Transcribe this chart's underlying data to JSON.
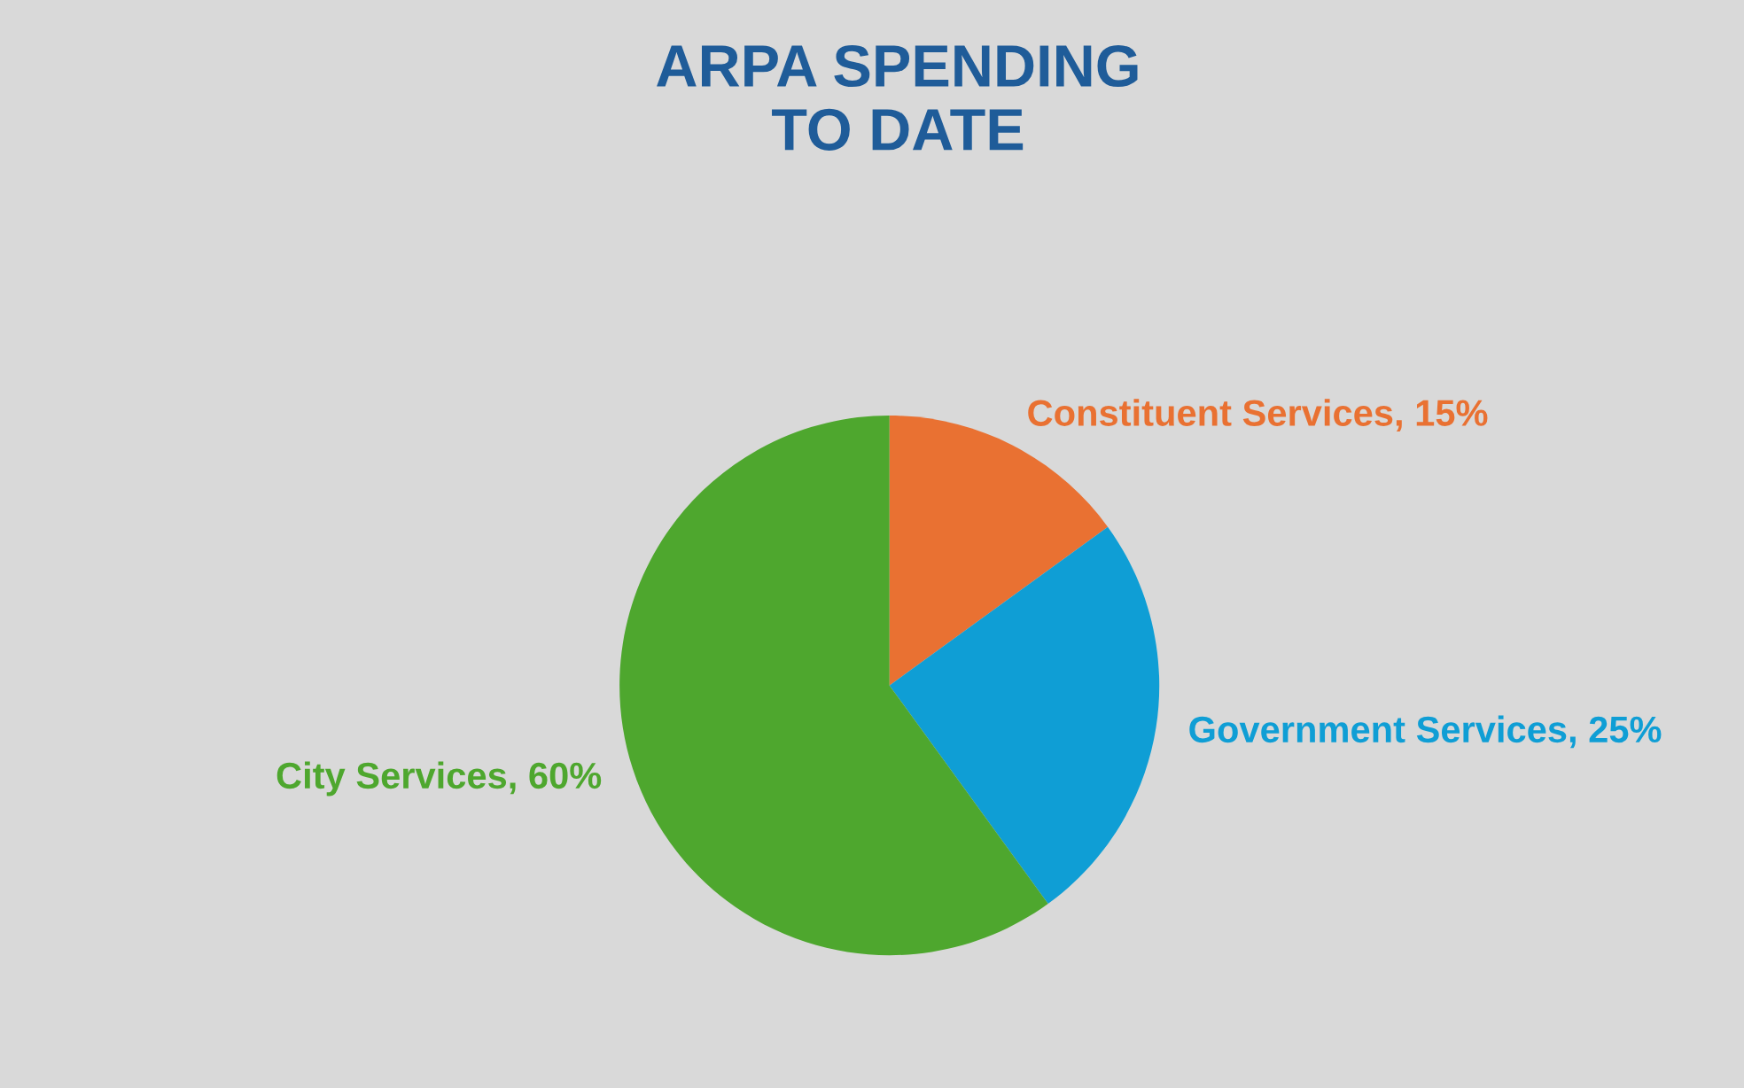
{
  "chart_data": {
    "type": "pie",
    "title": "ARPA SPENDING\nTO DATE",
    "categories": [
      "Constituent Services",
      "Government Services",
      "City Services"
    ],
    "values": [
      15,
      25,
      60
    ],
    "value_labels": [
      "15%",
      "25%",
      "60%"
    ],
    "colors": [
      "#e97132",
      "#0f9ed5",
      "#4ea72e"
    ]
  }
}
